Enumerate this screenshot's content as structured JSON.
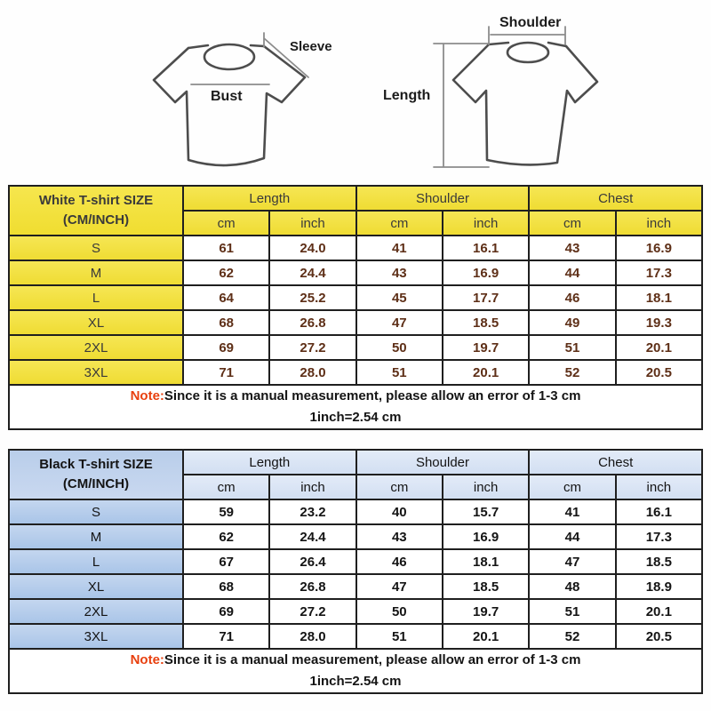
{
  "diagrams": {
    "sleeve_label": "Sleeve",
    "bust_label": "Bust",
    "shoulder_label": "Shoulder",
    "length_label": "Length"
  },
  "tables": [
    {
      "title_line1": "White T-shirt SIZE",
      "title_line2": "(CM/INCH)",
      "groups": [
        "Length",
        "Shoulder",
        "Chest"
      ],
      "units": [
        "cm",
        "inch",
        "cm",
        "inch",
        "cm",
        "inch"
      ],
      "rows": [
        {
          "size": "S",
          "values": [
            "61",
            "24.0",
            "41",
            "16.1",
            "43",
            "16.9"
          ]
        },
        {
          "size": "M",
          "values": [
            "62",
            "24.4",
            "43",
            "16.9",
            "44",
            "17.3"
          ]
        },
        {
          "size": "L",
          "values": [
            "64",
            "25.2",
            "45",
            "17.7",
            "46",
            "18.1"
          ]
        },
        {
          "size": "XL",
          "values": [
            "68",
            "26.8",
            "47",
            "18.5",
            "49",
            "19.3"
          ]
        },
        {
          "size": "2XL",
          "values": [
            "69",
            "27.2",
            "50",
            "19.7",
            "51",
            "20.1"
          ]
        },
        {
          "size": "3XL",
          "values": [
            "71",
            "28.0",
            "51",
            "20.1",
            "52",
            "20.5"
          ]
        }
      ],
      "note_prefix": "Note:",
      "note_text": "Since it is a manual measurement, please allow an error of 1-3 cm",
      "note_line2": "1inch=2.54 cm",
      "colors": {
        "header_bg": "#F2DF3D",
        "value_text": "#5E2F17",
        "note_accent": "#E8400F"
      }
    },
    {
      "title_line1": "Black T-shirt SIZE",
      "title_line2": "(CM/INCH)",
      "groups": [
        "Length",
        "Shoulder",
        "Chest"
      ],
      "units": [
        "cm",
        "inch",
        "cm",
        "inch",
        "cm",
        "inch"
      ],
      "rows": [
        {
          "size": "S",
          "values": [
            "59",
            "23.2",
            "40",
            "15.7",
            "41",
            "16.1"
          ]
        },
        {
          "size": "M",
          "values": [
            "62",
            "24.4",
            "43",
            "16.9",
            "44",
            "17.3"
          ]
        },
        {
          "size": "L",
          "values": [
            "67",
            "26.4",
            "46",
            "18.1",
            "47",
            "18.5"
          ]
        },
        {
          "size": "XL",
          "values": [
            "68",
            "26.8",
            "47",
            "18.5",
            "48",
            "18.9"
          ]
        },
        {
          "size": "2XL",
          "values": [
            "69",
            "27.2",
            "50",
            "19.7",
            "51",
            "20.1"
          ]
        },
        {
          "size": "3XL",
          "values": [
            "71",
            "28.0",
            "51",
            "20.1",
            "52",
            "20.5"
          ]
        }
      ],
      "note_prefix": "Note:",
      "note_text": "Since it is a manual measurement, please allow an error of 1-3 cm",
      "note_line2": "1inch=2.54 cm",
      "colors": {
        "header_bg": "#B7CDEB",
        "subheader_bg": "#DBE5F4",
        "value_text": "#141414",
        "note_accent": "#E8400F"
      }
    }
  ]
}
